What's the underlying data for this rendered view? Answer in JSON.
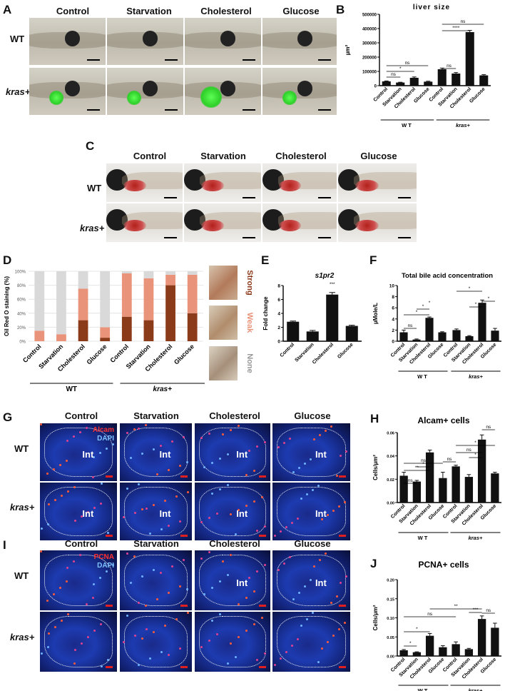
{
  "panels": {
    "A": {
      "label": "A",
      "columns": [
        "Control",
        "Starvation",
        "Cholesterol",
        "Glucose"
      ],
      "rows": [
        "WT",
        "kras+"
      ]
    },
    "B": {
      "label": "B"
    },
    "C": {
      "label": "C",
      "columns": [
        "Control",
        "Starvation",
        "Cholesterol",
        "Glucose"
      ],
      "rows": [
        "WT",
        "kras+"
      ]
    },
    "D": {
      "label": "D",
      "legend": [
        "Strong",
        "Weak",
        "None"
      ],
      "group_labels": [
        "WT",
        "kras+"
      ]
    },
    "E": {
      "label": "E"
    },
    "F": {
      "label": "F"
    },
    "G": {
      "label": "G",
      "columns": [
        "Control",
        "Starvation",
        "Cholesterol",
        "Glucose"
      ],
      "rows": [
        "WT",
        "kras+"
      ],
      "stain1": "Alcam",
      "stain2": "DAPI",
      "int_label": "Int"
    },
    "H": {
      "label": "H"
    },
    "I": {
      "label": "I",
      "columns": [
        "Control",
        "Starvation",
        "Cholesterol",
        "Glucose"
      ],
      "rows": [
        "WT",
        "kras+"
      ],
      "stain1": "PCNA",
      "stain2": "DAPI",
      "int_label": "Int"
    },
    "J": {
      "label": "J"
    }
  },
  "chart_data": [
    {
      "id": "B",
      "type": "bar",
      "title": "liver size",
      "ylabel": "µm²",
      "ylim": [
        0,
        500000
      ],
      "yticks": [
        "0",
        "100000",
        "200000",
        "300000",
        "400000",
        "500000"
      ],
      "categories": [
        "Control",
        "Starvation",
        "Cholesterol",
        "Glucose",
        "Control",
        "Starvation",
        "Cholesterol",
        "Glucose"
      ],
      "values": [
        30000,
        22000,
        55000,
        28000,
        115000,
        85000,
        375000,
        72000
      ],
      "errors": [
        3000,
        2000,
        6000,
        3000,
        8000,
        7000,
        12000,
        5000
      ],
      "groups": [
        {
          "label": "WT"
        },
        {
          "label": "kras+"
        }
      ],
      "annotations": [
        "ns",
        "*",
        "ns",
        "ns",
        "****",
        "ns"
      ]
    },
    {
      "id": "D",
      "type": "bar",
      "ylabel": "Oil Red O staining (%)",
      "ylim": [
        0,
        100
      ],
      "yticks": [
        "0%",
        "20%",
        "40%",
        "60%",
        "80%",
        "100%"
      ],
      "categories": [
        "Control",
        "Starvation",
        "Cholesterol",
        "Glucose",
        "Control",
        "Starvation",
        "Cholesterol",
        "Glucose"
      ],
      "series": [
        {
          "name": "Strong",
          "color": "#8b3a1a",
          "values": [
            0,
            0,
            30,
            5,
            35,
            30,
            80,
            40
          ]
        },
        {
          "name": "Weak",
          "color": "#e8937a",
          "values": [
            15,
            10,
            45,
            15,
            62,
            60,
            15,
            55
          ]
        },
        {
          "name": "None",
          "color": "#d9d9d9",
          "values": [
            85,
            90,
            25,
            80,
            3,
            10,
            5,
            5
          ]
        }
      ]
    },
    {
      "id": "E",
      "type": "bar",
      "title": "s1pr2",
      "ylabel": "Fold change",
      "ylim": [
        0,
        8
      ],
      "yticks": [
        "0",
        "2",
        "4",
        "6",
        "8"
      ],
      "categories": [
        "Control",
        "Starvation",
        "Cholesterol",
        "Glucose"
      ],
      "values": [
        2.8,
        1.4,
        6.7,
        2.2
      ],
      "errors": [
        0.1,
        0.15,
        0.3,
        0.1
      ],
      "annotations": [
        "***"
      ]
    },
    {
      "id": "F",
      "type": "bar",
      "title": "Total bile acid concentration",
      "ylabel": "µMole/L",
      "ylim": [
        0,
        10
      ],
      "yticks": [
        "0",
        "2",
        "4",
        "6",
        "8",
        "10"
      ],
      "categories": [
        "Control",
        "Starvation",
        "Cholesterol",
        "Glucose",
        "Control",
        "Starvation",
        "Cholesterol",
        "Glucose"
      ],
      "values": [
        1.6,
        0.3,
        4.2,
        1.6,
        2.0,
        0.9,
        6.9,
        1.9
      ],
      "errors": [
        0.4,
        0.1,
        0.15,
        0.1,
        0.2,
        0.1,
        0.5,
        0.4
      ],
      "groups": [
        {
          "label": "WT"
        },
        {
          "label": "kras+"
        }
      ],
      "annotations": [
        "ns",
        "*",
        "*",
        "*",
        "*",
        "*",
        "*"
      ]
    },
    {
      "id": "H",
      "type": "bar",
      "title": "Alcam+ cells",
      "ylabel": "Cells/µm²",
      "ylim": [
        0,
        0.06
      ],
      "yticks": [
        "0.00",
        "0.02",
        "0.04",
        "0.06"
      ],
      "categories": [
        "Control",
        "Starvation",
        "Cholesterol",
        "Glucose",
        "Control",
        "Starvation",
        "Cholesterol",
        "Glucose"
      ],
      "values": [
        0.023,
        0.018,
        0.043,
        0.021,
        0.031,
        0.022,
        0.054,
        0.025
      ],
      "errors": [
        0.003,
        0.001,
        0.002,
        0.005,
        0.001,
        0.002,
        0.004,
        0.001
      ],
      "groups": [
        {
          "label": "WT"
        },
        {
          "label": "kras+"
        }
      ],
      "annotations": [
        "ns",
        "**",
        "ns",
        "*",
        "ns",
        "ns",
        "*",
        "*",
        "ns"
      ]
    },
    {
      "id": "J",
      "type": "bar",
      "title": "PCNA+ cells",
      "ylabel": "Cells/µm²",
      "ylim": [
        0,
        0.2
      ],
      "yticks": [
        "0.00",
        "0.05",
        "0.10",
        "0.15",
        "0.20"
      ],
      "categories": [
        "Control",
        "Starvation",
        "Cholesterol",
        "Glucose",
        "Control",
        "Starvation",
        "Cholesterol",
        "Glucose"
      ],
      "values": [
        0.015,
        0.01,
        0.053,
        0.023,
        0.031,
        0.018,
        0.097,
        0.074
      ],
      "errors": [
        0.002,
        0.001,
        0.006,
        0.004,
        0.006,
        0.002,
        0.008,
        0.012
      ],
      "groups": [
        {
          "label": "WT"
        },
        {
          "label": "kras+"
        }
      ],
      "annotations": [
        "*",
        "*",
        "ns",
        "**",
        "***",
        "ns"
      ]
    }
  ]
}
